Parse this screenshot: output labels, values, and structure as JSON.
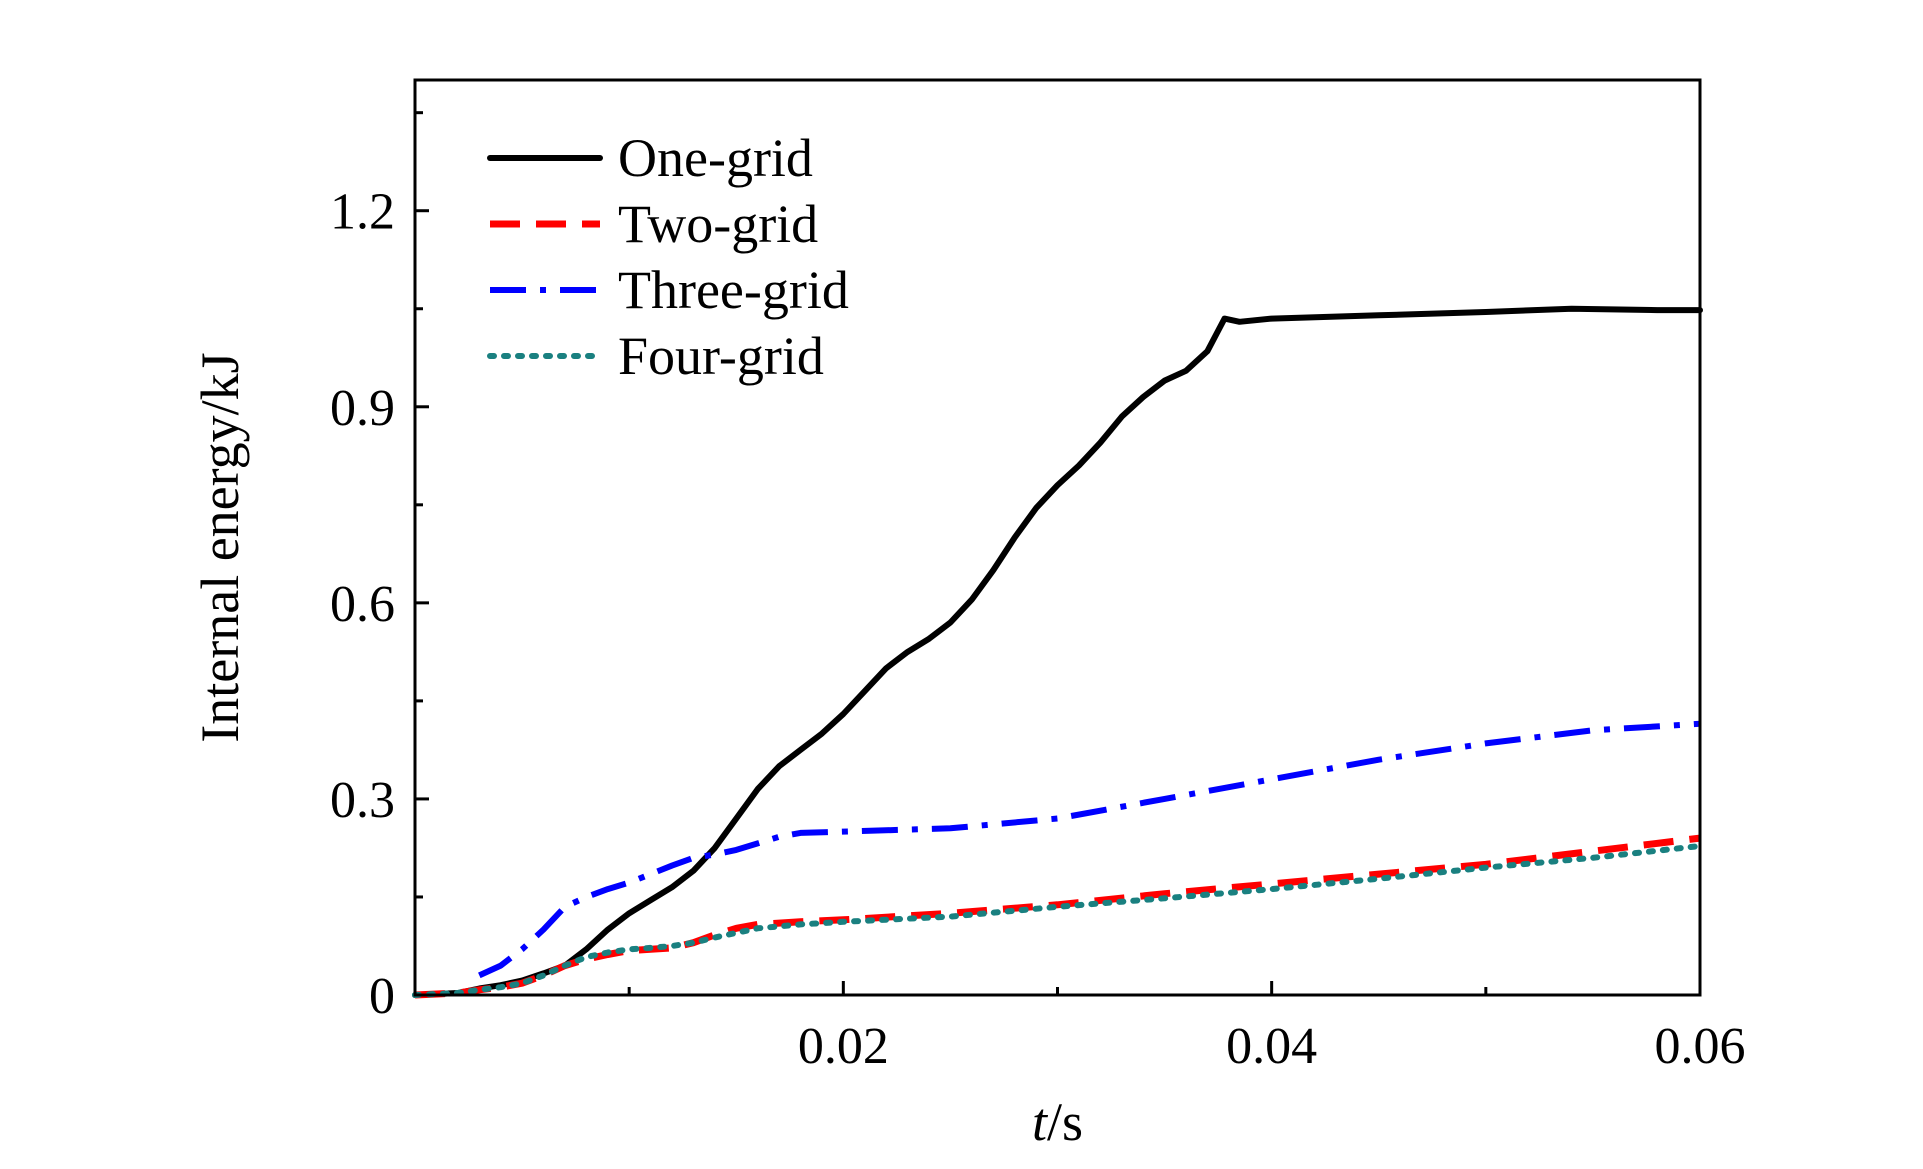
{
  "chart_data": {
    "type": "line",
    "title": "",
    "xlabel_italic": "t",
    "xlabel_rest": "/s",
    "ylabel": "Internal energy/kJ",
    "xlim": [
      0,
      0.06
    ],
    "ylim": [
      0,
      1.4
    ],
    "x_ticks": [
      0.02,
      0.04,
      0.06
    ],
    "x_tick_labels": [
      "0.02",
      "0.04",
      "0.06"
    ],
    "y_ticks": [
      0,
      0.3,
      0.6,
      0.9,
      1.2
    ],
    "y_tick_labels": [
      "0",
      "0.3",
      "0.6",
      "0.9",
      "1.2"
    ],
    "grid": false,
    "legend_position": "top-left",
    "series": [
      {
        "name": "One-grid",
        "color": "#000000",
        "style": "solid",
        "points": [
          [
            0,
            0
          ],
          [
            0.002,
            0.003
          ],
          [
            0.003,
            0.01
          ],
          [
            0.004,
            0.015
          ],
          [
            0.005,
            0.022
          ],
          [
            0.006,
            0.033
          ],
          [
            0.007,
            0.045
          ],
          [
            0.008,
            0.07
          ],
          [
            0.009,
            0.1
          ],
          [
            0.01,
            0.125
          ],
          [
            0.011,
            0.145
          ],
          [
            0.012,
            0.165
          ],
          [
            0.013,
            0.19
          ],
          [
            0.014,
            0.225
          ],
          [
            0.015,
            0.27
          ],
          [
            0.016,
            0.315
          ],
          [
            0.017,
            0.35
          ],
          [
            0.018,
            0.375
          ],
          [
            0.019,
            0.4
          ],
          [
            0.02,
            0.43
          ],
          [
            0.021,
            0.465
          ],
          [
            0.022,
            0.5
          ],
          [
            0.023,
            0.525
          ],
          [
            0.024,
            0.545
          ],
          [
            0.025,
            0.57
          ],
          [
            0.026,
            0.605
          ],
          [
            0.027,
            0.65
          ],
          [
            0.028,
            0.7
          ],
          [
            0.029,
            0.745
          ],
          [
            0.03,
            0.78
          ],
          [
            0.031,
            0.81
          ],
          [
            0.032,
            0.845
          ],
          [
            0.033,
            0.885
          ],
          [
            0.034,
            0.915
          ],
          [
            0.035,
            0.94
          ],
          [
            0.036,
            0.955
          ],
          [
            0.037,
            0.985
          ],
          [
            0.0378,
            1.035
          ],
          [
            0.0385,
            1.03
          ],
          [
            0.04,
            1.035
          ],
          [
            0.045,
            1.04
          ],
          [
            0.05,
            1.045
          ],
          [
            0.054,
            1.05
          ],
          [
            0.058,
            1.048
          ],
          [
            0.06,
            1.048
          ]
        ]
      },
      {
        "name": "Two-grid",
        "color": "#ff0000",
        "style": "dashed",
        "points": [
          [
            0,
            0
          ],
          [
            0.002,
            0.003
          ],
          [
            0.003,
            0.008
          ],
          [
            0.004,
            0.012
          ],
          [
            0.005,
            0.018
          ],
          [
            0.006,
            0.03
          ],
          [
            0.007,
            0.045
          ],
          [
            0.008,
            0.055
          ],
          [
            0.009,
            0.062
          ],
          [
            0.01,
            0.068
          ],
          [
            0.011,
            0.07
          ],
          [
            0.012,
            0.072
          ],
          [
            0.013,
            0.08
          ],
          [
            0.014,
            0.092
          ],
          [
            0.015,
            0.102
          ],
          [
            0.016,
            0.108
          ],
          [
            0.017,
            0.11
          ],
          [
            0.018,
            0.112
          ],
          [
            0.02,
            0.115
          ],
          [
            0.025,
            0.125
          ],
          [
            0.03,
            0.138
          ],
          [
            0.035,
            0.155
          ],
          [
            0.04,
            0.17
          ],
          [
            0.045,
            0.185
          ],
          [
            0.05,
            0.2
          ],
          [
            0.055,
            0.22
          ],
          [
            0.06,
            0.24
          ]
        ]
      },
      {
        "name": "Three-grid",
        "color": "#0000ff",
        "style": "dashdot",
        "points": [
          [
            0.003,
            0.03
          ],
          [
            0.004,
            0.045
          ],
          [
            0.005,
            0.07
          ],
          [
            0.006,
            0.1
          ],
          [
            0.007,
            0.135
          ],
          [
            0.008,
            0.15
          ],
          [
            0.009,
            0.162
          ],
          [
            0.01,
            0.172
          ],
          [
            0.011,
            0.185
          ],
          [
            0.012,
            0.198
          ],
          [
            0.013,
            0.21
          ],
          [
            0.014,
            0.215
          ],
          [
            0.015,
            0.222
          ],
          [
            0.016,
            0.232
          ],
          [
            0.017,
            0.242
          ],
          [
            0.018,
            0.248
          ],
          [
            0.02,
            0.25
          ],
          [
            0.025,
            0.255
          ],
          [
            0.03,
            0.27
          ],
          [
            0.035,
            0.3
          ],
          [
            0.04,
            0.33
          ],
          [
            0.045,
            0.36
          ],
          [
            0.05,
            0.385
          ],
          [
            0.055,
            0.405
          ],
          [
            0.06,
            0.415
          ]
        ]
      },
      {
        "name": "Four-grid",
        "color": "#1a8080",
        "style": "dotted",
        "points": [
          [
            0,
            0
          ],
          [
            0.002,
            0.003
          ],
          [
            0.003,
            0.008
          ],
          [
            0.004,
            0.012
          ],
          [
            0.005,
            0.018
          ],
          [
            0.006,
            0.03
          ],
          [
            0.007,
            0.045
          ],
          [
            0.008,
            0.058
          ],
          [
            0.009,
            0.065
          ],
          [
            0.01,
            0.07
          ],
          [
            0.011,
            0.072
          ],
          [
            0.012,
            0.075
          ],
          [
            0.013,
            0.08
          ],
          [
            0.014,
            0.088
          ],
          [
            0.015,
            0.095
          ],
          [
            0.016,
            0.102
          ],
          [
            0.017,
            0.105
          ],
          [
            0.018,
            0.108
          ],
          [
            0.02,
            0.112
          ],
          [
            0.025,
            0.12
          ],
          [
            0.03,
            0.135
          ],
          [
            0.035,
            0.148
          ],
          [
            0.04,
            0.162
          ],
          [
            0.045,
            0.178
          ],
          [
            0.05,
            0.195
          ],
          [
            0.055,
            0.21
          ],
          [
            0.06,
            0.228
          ]
        ]
      }
    ]
  }
}
